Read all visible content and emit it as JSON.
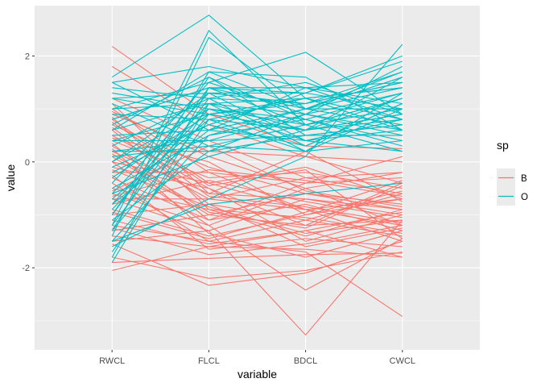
{
  "chart_data": {
    "type": "line",
    "subtype": "parallel-coordinates",
    "title": "",
    "xlabel": "variable",
    "ylabel": "value",
    "categories": [
      "RWCL",
      "FLCL",
      "BDCL",
      "CWCL"
    ],
    "ylim": [
      -3.55,
      2.95
    ],
    "yticks": [
      -2,
      0,
      2
    ],
    "ytick_labels": [
      "-2",
      "0",
      "2"
    ],
    "grid": true,
    "legend": {
      "title": "sp",
      "position": "right",
      "entries": [
        {
          "name": "B",
          "color": "#F8766D"
        },
        {
          "name": "O",
          "color": "#00BFC4"
        }
      ]
    },
    "series": [
      {
        "name": "B",
        "color": "#F8766D",
        "lines": [
          [
            2.18,
            0.9,
            0.3,
            0.25
          ],
          [
            1.8,
            0.7,
            0.1,
            0.0
          ],
          [
            -2.05,
            -1.6,
            -1.65,
            -1.8
          ],
          [
            -1.55,
            -2.33,
            -2.1,
            -1.5
          ],
          [
            -0.7,
            -1.3,
            -3.27,
            -1.1
          ],
          [
            0.0,
            -1.2,
            -2.42,
            -1.45
          ],
          [
            -1.2,
            -1.5,
            -1.7,
            -2.92
          ],
          [
            -1.9,
            -1.82,
            -1.75,
            -1.72
          ],
          [
            -1.8,
            -2.2,
            -2.05,
            -1.7
          ],
          [
            -1.1,
            -1.55,
            -1.3,
            -1.8
          ],
          [
            0.95,
            0.1,
            -0.5,
            -1.2
          ],
          [
            0.8,
            -0.4,
            -0.9,
            -0.7
          ],
          [
            0.6,
            -0.8,
            -1.1,
            -0.6
          ],
          [
            0.4,
            -0.3,
            -0.2,
            -0.5
          ],
          [
            0.2,
            -0.6,
            -0.7,
            -1.0
          ],
          [
            0.1,
            -1.0,
            -0.6,
            -0.8
          ],
          [
            -0.1,
            -0.5,
            -1.2,
            -0.4
          ],
          [
            -0.3,
            -1.1,
            -0.8,
            -1.3
          ],
          [
            -0.5,
            -0.9,
            -1.4,
            -0.9
          ],
          [
            -0.7,
            -0.7,
            -0.9,
            -1.5
          ],
          [
            -0.9,
            -1.4,
            -1.0,
            -0.7
          ],
          [
            -1.3,
            -1.0,
            -1.2,
            -1.1
          ],
          [
            1.2,
            0.4,
            -0.3,
            -0.2
          ],
          [
            1.0,
            -0.2,
            -0.4,
            -0.3
          ],
          [
            0.7,
            -0.1,
            -0.6,
            -0.9
          ],
          [
            0.3,
            -0.7,
            -0.3,
            -0.6
          ],
          [
            -0.2,
            -0.2,
            -0.9,
            -1.2
          ],
          [
            -0.6,
            -1.2,
            -0.5,
            -0.2
          ],
          [
            0.5,
            -0.5,
            -1.5,
            -1.0
          ],
          [
            -1.0,
            -0.8,
            -1.6,
            -1.25
          ],
          [
            -1.5,
            -1.3,
            -0.7,
            -0.9
          ],
          [
            0.9,
            0.2,
            0.1,
            -0.4
          ],
          [
            0.0,
            -0.4,
            -0.1,
            -0.7
          ],
          [
            -0.4,
            -1.5,
            -1.1,
            -1.4
          ],
          [
            0.15,
            -0.95,
            -1.25,
            -0.45
          ],
          [
            -0.8,
            -0.35,
            -0.75,
            -1.05
          ],
          [
            0.65,
            -0.65,
            -0.85,
            -1.15
          ],
          [
            -0.25,
            -1.65,
            -1.45,
            -1.6
          ],
          [
            0.35,
            -1.1,
            -0.4,
            0.1
          ],
          [
            -1.4,
            -1.6,
            -1.3,
            -0.95
          ],
          [
            0.85,
            -0.9,
            -1.05,
            -1.35
          ],
          [
            -0.55,
            0.3,
            -0.55,
            -0.85
          ],
          [
            1.1,
            -0.6,
            0.2,
            -0.75
          ],
          [
            -0.15,
            -0.85,
            -1.35,
            -1.1
          ],
          [
            0.45,
            0.0,
            -1.0,
            -0.55
          ],
          [
            -0.95,
            -1.45,
            -0.95,
            -0.35
          ],
          [
            0.25,
            -1.35,
            -1.8,
            -1.3
          ],
          [
            -0.65,
            -0.15,
            -0.35,
            -0.65
          ],
          [
            0.75,
            -0.45,
            -0.15,
            -1.45
          ],
          [
            -1.25,
            -1.75,
            -1.55,
            -1.2
          ]
        ]
      },
      {
        "name": "O",
        "color": "#00BFC4",
        "lines": [
          [
            -1.7,
            0.8,
            0.6,
            1.2
          ],
          [
            -1.9,
            1.1,
            0.9,
            1.8
          ],
          [
            1.6,
            2.77,
            1.2,
            0.8
          ],
          [
            -1.2,
            2.48,
            0.7,
            1.0
          ],
          [
            -1.4,
            2.35,
            1.0,
            1.4
          ],
          [
            1.0,
            1.5,
            2.07,
            0.9
          ],
          [
            -1.5,
            -0.8,
            -0.6,
            -0.4
          ],
          [
            -1.6,
            -0.7,
            0.1,
            2.22
          ],
          [
            -1.8,
            1.4,
            1.3,
            2.0
          ],
          [
            1.2,
            1.3,
            1.1,
            1.5
          ],
          [
            -1.0,
            1.6,
            0.5,
            0.7
          ],
          [
            -1.3,
            1.7,
            1.6,
            0.6
          ],
          [
            1.5,
            1.8,
            1.4,
            1.1
          ],
          [
            1.4,
            1.2,
            1.5,
            0.9
          ],
          [
            -0.5,
            0.5,
            1.0,
            1.6
          ],
          [
            0.0,
            1.0,
            0.8,
            1.3
          ],
          [
            -0.2,
            0.7,
            0.3,
            1.1
          ],
          [
            0.4,
            0.9,
            0.6,
            0.8
          ],
          [
            0.6,
            1.1,
            1.2,
            1.4
          ],
          [
            0.8,
            1.4,
            1.0,
            1.7
          ],
          [
            -0.8,
            0.6,
            0.4,
            0.6
          ],
          [
            0.2,
            0.4,
            0.9,
            0.5
          ],
          [
            1.1,
            0.3,
            0.7,
            1.2
          ],
          [
            0.9,
            0.8,
            0.2,
            0.4
          ],
          [
            -0.6,
            1.3,
            1.3,
            1.0
          ],
          [
            -1.1,
            0.2,
            0.5,
            0.7
          ],
          [
            0.7,
            1.6,
            0.8,
            0.3
          ],
          [
            0.3,
            1.2,
            1.1,
            1.5
          ],
          [
            -0.3,
            0.9,
            0.6,
            0.9
          ],
          [
            1.3,
            1.0,
            0.4,
            0.2
          ],
          [
            -0.9,
            1.0,
            0.7,
            1.2
          ],
          [
            0.5,
            0.6,
            1.4,
            0.8
          ],
          [
            -0.4,
            1.5,
            0.9,
            1.3
          ],
          [
            0.1,
            0.3,
            0.2,
            1.0
          ],
          [
            -0.7,
            0.8,
            1.2,
            0.6
          ],
          [
            1.0,
            1.1,
            0.6,
            1.6
          ],
          [
            -1.5,
            0.5,
            0.8,
            0.4
          ],
          [
            0.6,
            1.7,
            1.0,
            0.7
          ],
          [
            -0.1,
            0.7,
            1.3,
            1.9
          ],
          [
            -1.2,
            1.2,
            0.3,
            1.1
          ],
          [
            0.4,
            0.4,
            0.5,
            0.5
          ],
          [
            1.2,
            0.9,
            1.2,
            1.4
          ],
          [
            -0.6,
            0.1,
            0.6,
            0.9
          ],
          [
            0.8,
            1.4,
            0.7,
            0.2
          ],
          [
            -1.3,
            0.9,
            1.1,
            1.7
          ],
          [
            0.0,
            1.3,
            0.4,
            0.8
          ],
          [
            1.5,
            0.6,
            1.0,
            1.0
          ],
          [
            -0.8,
            1.1,
            0.2,
            1.3
          ],
          [
            0.2,
            0.2,
            0.9,
            0.6
          ],
          [
            -1.0,
            1.4,
            1.4,
            1.5
          ]
        ]
      }
    ]
  }
}
